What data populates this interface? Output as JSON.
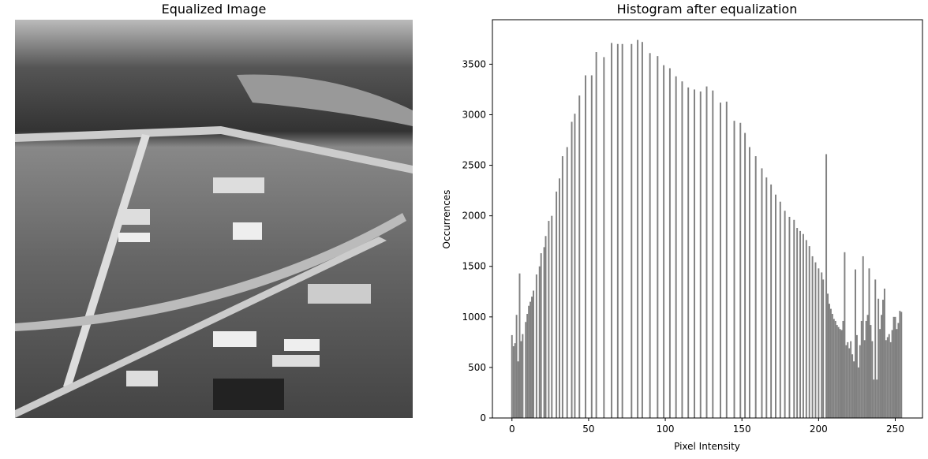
{
  "image_panel": {
    "title": "Equalized Image"
  },
  "chart_data": {
    "type": "bar",
    "title": "Histogram after equalization",
    "x_label": "Pixel Intensity",
    "y_label": "Occurrences",
    "color": "#808080",
    "x": [
      0,
      1,
      2,
      3,
      4,
      5,
      6,
      7,
      9,
      10,
      11,
      12,
      13,
      14,
      16,
      18,
      19,
      21,
      22,
      24,
      26,
      29,
      31,
      33,
      36,
      39,
      41,
      44,
      48,
      52,
      55,
      60,
      65,
      69,
      72,
      78,
      82,
      85,
      90,
      95,
      99,
      103,
      107,
      111,
      115,
      119,
      123,
      127,
      131,
      136,
      140,
      145,
      149,
      152,
      155,
      159,
      163,
      166,
      169,
      172,
      175,
      178,
      181,
      184,
      186,
      188,
      190,
      192,
      194,
      196,
      198,
      200,
      202,
      203,
      205,
      206,
      207,
      208,
      209,
      210,
      211,
      212,
      213,
      214,
      215,
      216,
      217,
      218,
      219,
      220,
      221,
      222,
      223,
      224,
      225,
      226,
      227,
      228,
      229,
      230,
      231,
      232,
      233,
      234,
      235,
      236,
      237,
      238,
      239,
      240,
      241,
      242,
      243,
      244,
      245,
      246,
      247,
      248,
      249,
      250,
      251,
      252,
      253,
      254
    ],
    "values": [
      820,
      710,
      740,
      1020,
      560,
      1430,
      760,
      830,
      950,
      1030,
      1110,
      1150,
      1200,
      1260,
      1420,
      1500,
      1630,
      1690,
      1800,
      1950,
      2000,
      2240,
      2370,
      2590,
      2680,
      2930,
      3010,
      3190,
      3390,
      3390,
      3620,
      3570,
      3710,
      3700,
      3700,
      3700,
      3740,
      3720,
      3610,
      3580,
      3490,
      3460,
      3380,
      3330,
      3270,
      3250,
      3230,
      3280,
      3240,
      3120,
      3130,
      2940,
      2920,
      2820,
      2680,
      2590,
      2470,
      2380,
      2310,
      2210,
      2140,
      2050,
      1990,
      1960,
      1880,
      1850,
      1820,
      1760,
      1700,
      1600,
      1540,
      1480,
      1440,
      1370,
      2610,
      1230,
      1130,
      1080,
      1030,
      980,
      960,
      920,
      900,
      880,
      870,
      960,
      1640,
      720,
      750,
      690,
      760,
      630,
      560,
      1470,
      820,
      500,
      720,
      960,
      1600,
      770,
      960,
      1020,
      1480,
      920,
      760,
      380,
      1370,
      380,
      1180,
      880,
      1020,
      1170,
      1280,
      770,
      800,
      830,
      750,
      870,
      1000,
      1000,
      880,
      940,
      1060,
      1050
    ],
    "xlim": [
      -12.75,
      267.75
    ],
    "ylim": [
      0,
      3940
    ],
    "xticks": [
      0,
      50,
      100,
      150,
      200,
      250
    ],
    "yticks": [
      0,
      500,
      1000,
      1500,
      2000,
      2500,
      3000,
      3500
    ]
  }
}
